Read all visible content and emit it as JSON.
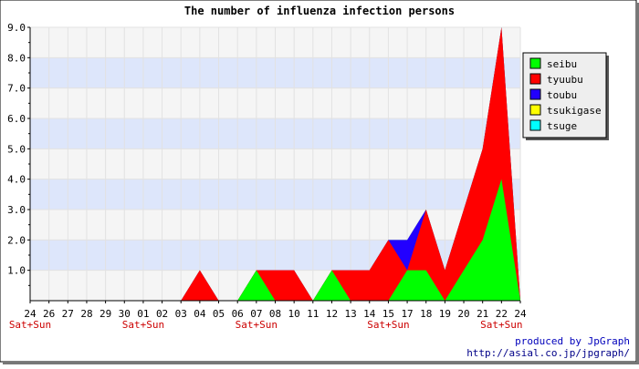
{
  "chart_data": {
    "type": "area",
    "title": "The number of influenza infection persons",
    "xlabel": "",
    "ylabel": "",
    "ylim": [
      0,
      9
    ],
    "yticks": [
      "1.0",
      "2.0",
      "3.0",
      "4.0",
      "5.0",
      "6.0",
      "7.0",
      "8.0",
      "9.0"
    ],
    "grid": true,
    "legend_position": "right",
    "stacked": true,
    "categories": [
      "24",
      "26",
      "27",
      "28",
      "29",
      "30",
      "01",
      "02",
      "03",
      "04",
      "05",
      "06",
      "07",
      "08",
      "10",
      "11",
      "12",
      "13",
      "14",
      "15",
      "17",
      "18",
      "19",
      "20",
      "21",
      "22",
      "24"
    ],
    "weekend_labels": [
      {
        "index": 0,
        "text": "Sat+Sun"
      },
      {
        "index": 6,
        "text": "Sat+Sun"
      },
      {
        "index": 12,
        "text": "Sat+Sun"
      },
      {
        "index": 19,
        "text": "Sat+Sun"
      },
      {
        "index": 25,
        "text": "Sat+Sun"
      }
    ],
    "series": [
      {
        "name": "seibu",
        "color": "#00ff00",
        "values": [
          0,
          0,
          0,
          0,
          0,
          0,
          0,
          0,
          0,
          0,
          0,
          0,
          1,
          0,
          0,
          0,
          1,
          0,
          0,
          0,
          1,
          1,
          0,
          1,
          2,
          4,
          0
        ]
      },
      {
        "name": "tyuubu",
        "color": "#ff0000",
        "values": [
          0,
          0,
          0,
          0,
          0,
          0,
          0,
          0,
          0,
          1,
          0,
          0,
          0,
          1,
          1,
          0,
          0,
          1,
          1,
          2,
          0,
          2,
          1,
          2,
          3,
          5,
          0
        ]
      },
      {
        "name": "toubu",
        "color": "#2200ff",
        "values": [
          0,
          0,
          0,
          0,
          0,
          0,
          0,
          0,
          0,
          0,
          0,
          0,
          0,
          0,
          0,
          0,
          0,
          0,
          0,
          0,
          1,
          0,
          0,
          0,
          0,
          0,
          0
        ]
      },
      {
        "name": "tsukigase",
        "color": "#ffff00",
        "values": [
          0,
          0,
          0,
          0,
          0,
          0,
          0,
          0,
          0,
          0,
          0,
          0,
          0,
          0,
          0,
          0,
          0,
          0,
          0,
          0,
          0,
          0,
          0,
          0,
          0,
          0,
          0
        ]
      },
      {
        "name": "tsuge",
        "color": "#00ffff",
        "values": [
          0,
          0,
          0,
          0,
          0,
          0,
          0,
          0,
          0,
          0,
          0,
          0,
          0,
          0,
          0,
          0,
          0,
          0,
          0,
          0,
          0,
          0,
          0,
          0,
          0,
          0,
          0
        ]
      }
    ]
  },
  "footer": {
    "line1": "produced by JpGraph",
    "line2": "http://asial.co.jp/jpgraph/"
  }
}
